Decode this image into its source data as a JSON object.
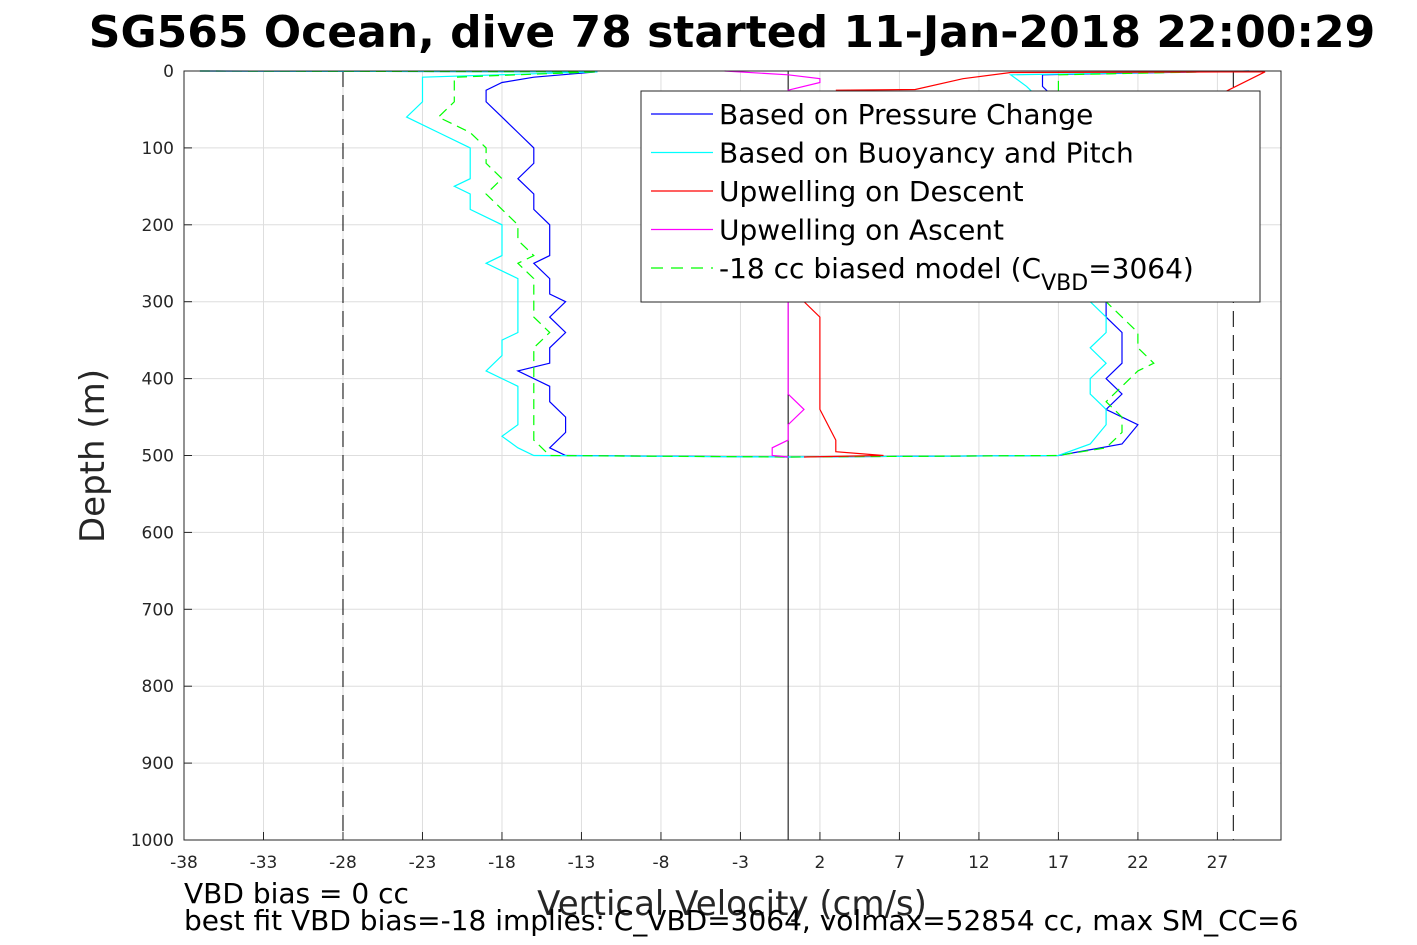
{
  "chart_data": {
    "type": "line",
    "title": "SG565 Ocean, dive 78 started 11-Jan-2018 22:00:29",
    "xlabel": "Vertical Velocity (cm/s)",
    "ylabel": "Depth (m)",
    "xlim": [
      -38,
      31
    ],
    "ylim": [
      0,
      1000
    ],
    "y_reversed": true,
    "x_ticks": [
      -38,
      -33,
      -28,
      -23,
      -18,
      -13,
      -8,
      -3,
      2,
      7,
      12,
      17,
      22,
      27
    ],
    "y_ticks": [
      0,
      100,
      200,
      300,
      400,
      500,
      600,
      700,
      800,
      900,
      1000
    ],
    "grid": true,
    "legend_position": "top-right",
    "reference_lines": {
      "zero": 0,
      "dashed_limits": [
        -28,
        28
      ]
    },
    "legend": [
      {
        "label": "Based on Pressure Change",
        "color": "#0000ff",
        "dash": "solid"
      },
      {
        "label": "Based on Buoyancy and Pitch",
        "color": "#00ffff",
        "dash": "solid"
      },
      {
        "label": "Upwelling on Descent",
        "color": "#ff0000",
        "dash": "solid"
      },
      {
        "label": "Upwelling on Ascent",
        "color": "#ff00ff",
        "dash": "solid"
      },
      {
        "label": "-18 cc biased model (C",
        "sub": "VBD",
        "suffix": "=3064)",
        "color": "#00ff00",
        "dash": "dashed"
      }
    ],
    "series": [
      {
        "name": "Based on Pressure Change",
        "color": "#0000ff",
        "dash": "solid",
        "points": [
          [
            -37,
            0
          ],
          [
            -12,
            1
          ],
          [
            -16,
            8
          ],
          [
            -18,
            15
          ],
          [
            -19,
            25
          ],
          [
            -19,
            40
          ],
          [
            -18,
            60
          ],
          [
            -17,
            80
          ],
          [
            -16,
            100
          ],
          [
            -16,
            120
          ],
          [
            -17,
            140
          ],
          [
            -16,
            160
          ],
          [
            -16,
            180
          ],
          [
            -15,
            200
          ],
          [
            -15,
            220
          ],
          [
            -15,
            240
          ],
          [
            -16,
            250
          ],
          [
            -15,
            270
          ],
          [
            -15,
            290
          ],
          [
            -14,
            300
          ],
          [
            -15,
            320
          ],
          [
            -14,
            340
          ],
          [
            -15,
            360
          ],
          [
            -15,
            380
          ],
          [
            -17,
            390
          ],
          [
            -15,
            410
          ],
          [
            -15,
            430
          ],
          [
            -14,
            450
          ],
          [
            -14,
            470
          ],
          [
            -15,
            490
          ],
          [
            -14,
            500
          ],
          [
            0,
            502
          ],
          [
            17,
            500
          ],
          [
            21,
            485
          ],
          [
            22,
            460
          ],
          [
            20,
            440
          ],
          [
            21,
            420
          ],
          [
            20,
            400
          ],
          [
            21,
            380
          ],
          [
            21,
            360
          ],
          [
            21,
            340
          ],
          [
            20,
            320
          ],
          [
            20,
            300
          ],
          [
            17,
            40
          ],
          [
            16,
            20
          ],
          [
            16,
            5
          ],
          [
            29,
            0
          ]
        ]
      },
      {
        "name": "Based on Buoyancy and Pitch",
        "color": "#00ffff",
        "dash": "solid",
        "points": [
          [
            -37,
            0
          ],
          [
            -12,
            1
          ],
          [
            -23,
            8
          ],
          [
            -23,
            20
          ],
          [
            -23,
            40
          ],
          [
            -24,
            60
          ],
          [
            -22,
            80
          ],
          [
            -20,
            100
          ],
          [
            -20,
            120
          ],
          [
            -20,
            140
          ],
          [
            -21,
            150
          ],
          [
            -20,
            160
          ],
          [
            -20,
            180
          ],
          [
            -18,
            200
          ],
          [
            -18,
            220
          ],
          [
            -18,
            240
          ],
          [
            -19,
            250
          ],
          [
            -17,
            270
          ],
          [
            -17,
            290
          ],
          [
            -17,
            300
          ],
          [
            -17,
            320
          ],
          [
            -17,
            340
          ],
          [
            -18,
            350
          ],
          [
            -18,
            370
          ],
          [
            -19,
            390
          ],
          [
            -17,
            410
          ],
          [
            -17,
            440
          ],
          [
            -17,
            460
          ],
          [
            -18,
            475
          ],
          [
            -17,
            490
          ],
          [
            -16,
            500
          ],
          [
            0,
            502
          ],
          [
            17,
            500
          ],
          [
            19,
            485
          ],
          [
            20,
            460
          ],
          [
            20,
            440
          ],
          [
            19,
            420
          ],
          [
            19,
            400
          ],
          [
            20,
            380
          ],
          [
            19,
            360
          ],
          [
            20,
            340
          ],
          [
            20,
            320
          ],
          [
            19,
            300
          ],
          [
            16,
            40
          ],
          [
            15,
            20
          ],
          [
            14,
            5
          ],
          [
            29,
            0
          ]
        ]
      },
      {
        "name": "-18 cc biased model",
        "color": "#00ff00",
        "dash": "dashed",
        "points": [
          [
            -37,
            0
          ],
          [
            -12,
            1
          ],
          [
            -21,
            8
          ],
          [
            -21,
            20
          ],
          [
            -21,
            40
          ],
          [
            -22,
            60
          ],
          [
            -20,
            80
          ],
          [
            -19,
            100
          ],
          [
            -19,
            120
          ],
          [
            -18,
            140
          ],
          [
            -19,
            160
          ],
          [
            -18,
            180
          ],
          [
            -17,
            200
          ],
          [
            -17,
            220
          ],
          [
            -16,
            240
          ],
          [
            -17,
            250
          ],
          [
            -16,
            270
          ],
          [
            -16,
            290
          ],
          [
            -16,
            300
          ],
          [
            -16,
            320
          ],
          [
            -15,
            340
          ],
          [
            -16,
            360
          ],
          [
            -16,
            380
          ],
          [
            -16,
            400
          ],
          [
            -16,
            420
          ],
          [
            -16,
            440
          ],
          [
            -16,
            460
          ],
          [
            -16,
            480
          ],
          [
            -15,
            500
          ],
          [
            0,
            502
          ],
          [
            17,
            500
          ],
          [
            20,
            490
          ],
          [
            21,
            470
          ],
          [
            21,
            450
          ],
          [
            20,
            430
          ],
          [
            21,
            410
          ],
          [
            22,
            390
          ],
          [
            23,
            380
          ],
          [
            22,
            360
          ],
          [
            22,
            340
          ],
          [
            21,
            320
          ],
          [
            20,
            300
          ],
          [
            17,
            50
          ],
          [
            17,
            25
          ],
          [
            17,
            5
          ],
          [
            29,
            0
          ]
        ]
      },
      {
        "name": "Upwelling on Descent",
        "color": "#ff0000",
        "dash": "solid",
        "points": [
          [
            3,
            25
          ],
          [
            8,
            24
          ],
          [
            11,
            10
          ],
          [
            14,
            2
          ],
          [
            30,
            1
          ],
          [
            1,
            300
          ],
          [
            2,
            320
          ],
          [
            2,
            340
          ],
          [
            2,
            360
          ],
          [
            2,
            380
          ],
          [
            2,
            400
          ],
          [
            2,
            420
          ],
          [
            2,
            440
          ],
          [
            3,
            480
          ],
          [
            3,
            495
          ],
          [
            6,
            500
          ],
          [
            1,
            502
          ]
        ]
      },
      {
        "name": "Upwelling on Ascent",
        "color": "#ff00ff",
        "dash": "solid",
        "points": [
          [
            -4,
            0
          ],
          [
            0,
            5
          ],
          [
            2,
            10
          ],
          [
            2,
            15
          ],
          [
            0,
            25
          ],
          [
            0,
            300
          ],
          [
            0,
            320
          ],
          [
            0,
            340
          ],
          [
            0,
            360
          ],
          [
            0,
            380
          ],
          [
            0,
            400
          ],
          [
            0,
            420
          ],
          [
            1,
            440
          ],
          [
            0,
            460
          ],
          [
            0,
            480
          ],
          [
            -1,
            490
          ],
          [
            -1,
            500
          ],
          [
            0,
            502
          ]
        ]
      }
    ]
  },
  "notes": {
    "line1": "VBD bias = 0 cc",
    "line2": "best fit VBD bias=-18 implies: C_VBD=3064, volmax=52854 cc, max SM_CC=6"
  }
}
